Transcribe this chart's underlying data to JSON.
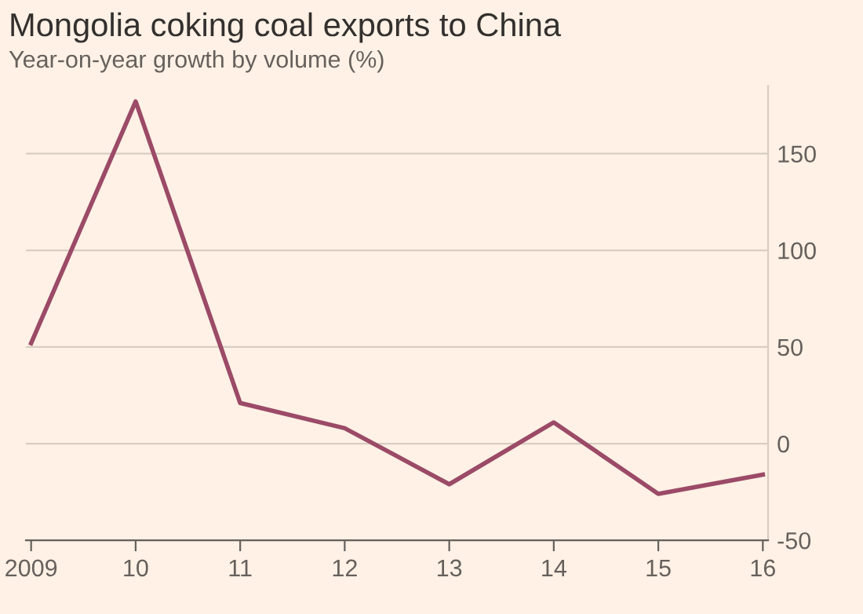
{
  "chart_data": {
    "type": "line",
    "title": "Mongolia coking coal exports to China",
    "subtitle": "Year-on-year growth by volume (%)",
    "categories": [
      "2009",
      "10",
      "11",
      "12",
      "13",
      "14",
      "15",
      "16"
    ],
    "values": [
      52,
      177,
      21,
      8,
      -21,
      11,
      -26,
      -16
    ],
    "ylim": [
      -50,
      185
    ],
    "color": "#9b4a67",
    "yticks": [
      -50,
      0,
      50,
      100,
      150
    ],
    "grid": "y",
    "marker": "none",
    "line_style": "solid"
  }
}
